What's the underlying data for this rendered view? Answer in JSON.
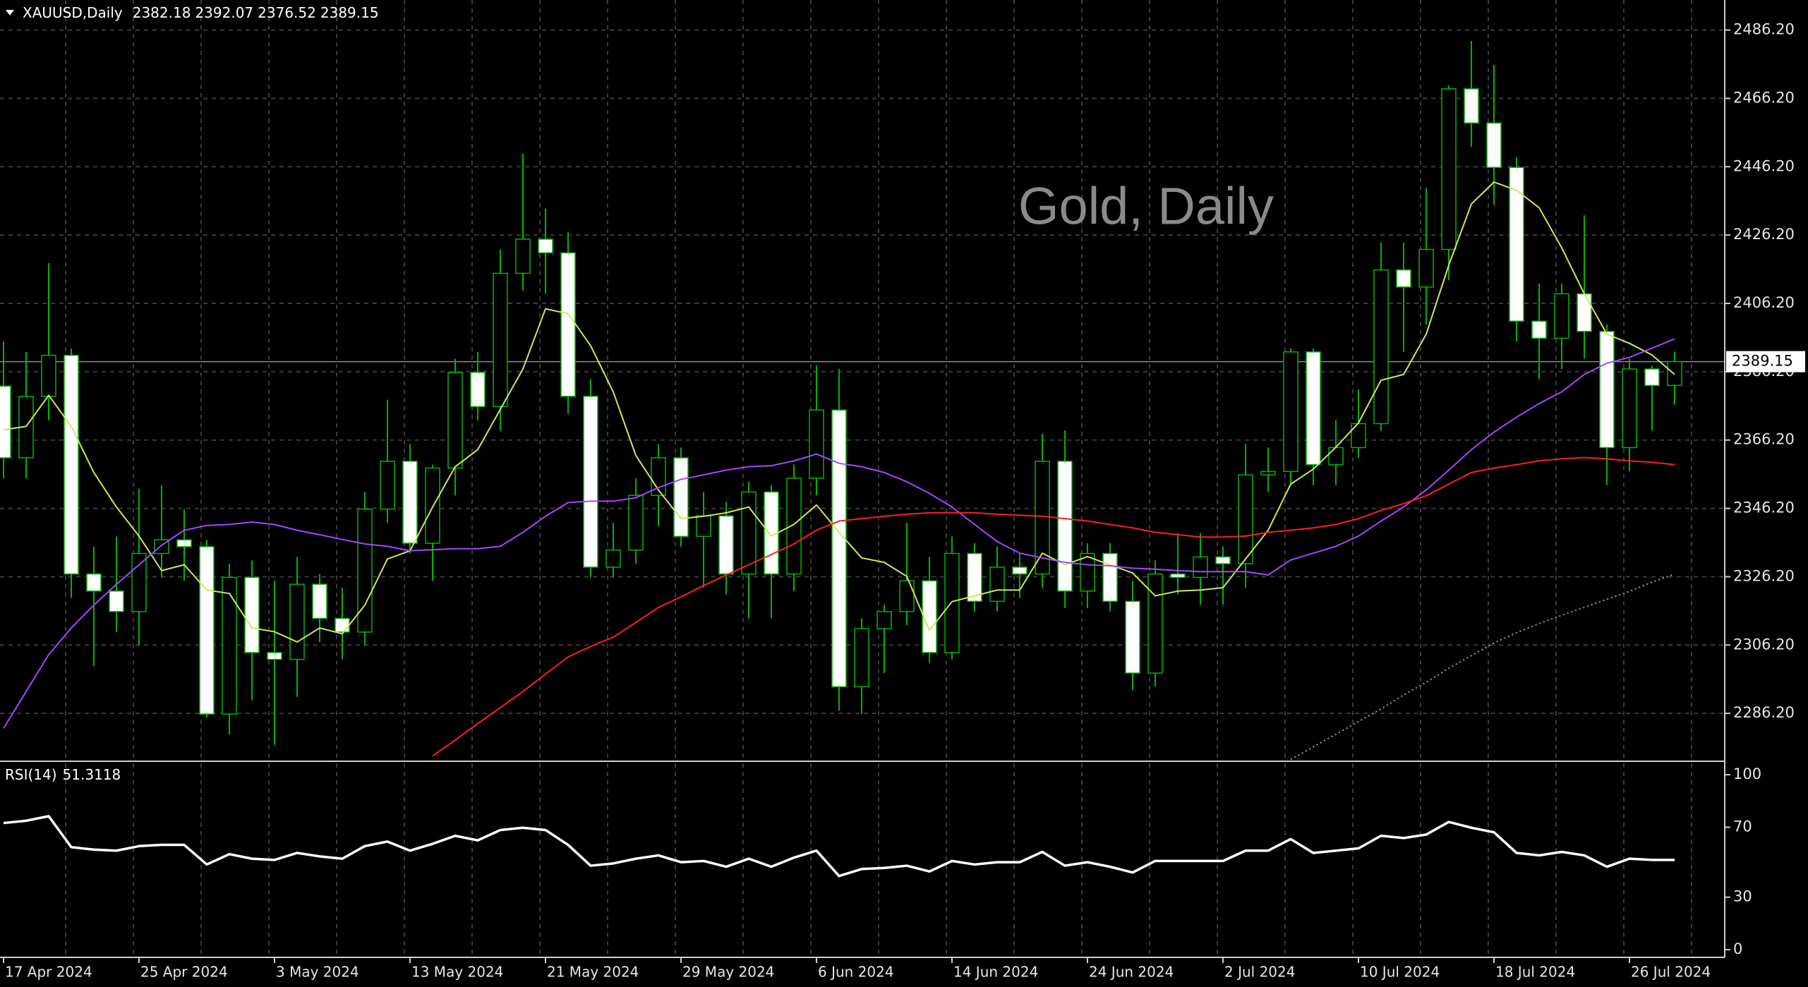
{
  "chart_data": [
    {
      "type": "candlestick",
      "title": "Gold, Daily",
      "symbol": "XAUUSD,Daily",
      "categories": [
        "17 Apr 2024",
        null,
        null,
        null,
        null,
        null,
        "25 Apr 2024",
        null,
        null,
        null,
        null,
        null,
        "3 May 2024",
        null,
        null,
        null,
        null,
        null,
        "13 May 2024",
        null,
        null,
        null,
        null,
        null,
        "21 May 2024",
        null,
        null,
        null,
        null,
        null,
        "29 May 2024",
        null,
        null,
        null,
        null,
        null,
        "6 Jun 2024",
        null,
        null,
        null,
        null,
        null,
        "14 Jun 2024",
        null,
        null,
        null,
        null,
        null,
        "24 Jun 2024",
        null,
        null,
        null,
        null,
        null,
        "2 Jul 2024",
        null,
        null,
        null,
        null,
        null,
        "10 Jul 2024",
        null,
        null,
        null,
        null,
        null,
        "18 Jul 2024",
        null,
        null,
        null,
        null,
        null,
        "26 Jul 2024",
        null,
        null
      ],
      "open": [
        2382,
        2361,
        2379,
        2391,
        2327,
        2322,
        2316,
        2333,
        2337,
        2335,
        2286,
        2326,
        2304,
        2302,
        2324,
        2314,
        2310,
        2346,
        2360,
        2336,
        2358,
        2386,
        2376,
        2415,
        2425,
        2421,
        2379,
        2329,
        2334,
        2350,
        2361,
        2338,
        2344,
        2327,
        2351,
        2327,
        2355,
        2375,
        2294,
        2311,
        2316,
        2325,
        2304,
        2333,
        2319,
        2329,
        2327,
        2360,
        2322,
        2333,
        2319,
        2298,
        2327,
        2326,
        2332,
        2330,
        2356,
        2357,
        2392,
        2359,
        2364,
        2371,
        2416,
        2411,
        2422,
        2469,
        2459,
        2446,
        2401,
        2396,
        2409,
        2398,
        2364,
        2387,
        2382.18
      ],
      "high": [
        2395,
        2392,
        2418,
        2393,
        2335,
        2338,
        2352,
        2353,
        2346,
        2337,
        2330,
        2331,
        2325,
        2332,
        2327,
        2323,
        2351,
        2378,
        2365,
        2359,
        2390,
        2392,
        2422,
        2450,
        2434,
        2427,
        2384,
        2342,
        2355,
        2365,
        2364,
        2351,
        2348,
        2354,
        2353,
        2359,
        2388,
        2387,
        2314,
        2318,
        2342,
        2332,
        2338,
        2336,
        2335,
        2333,
        2368,
        2369,
        2336,
        2336,
        2325,
        2331,
        2339,
        2339,
        2335,
        2365,
        2364,
        2393,
        2393,
        2372,
        2381,
        2424,
        2424,
        2440,
        2470,
        2483,
        2476,
        2449,
        2412,
        2412,
        2432,
        2400,
        2390,
        2388,
        2392.07
      ],
      "low": [
        2355,
        2355,
        2372,
        2320,
        2300,
        2310,
        2306,
        2326,
        2325,
        2285,
        2280,
        2290,
        2277,
        2291,
        2307,
        2302,
        2306,
        2342,
        2333,
        2325,
        2350,
        2372,
        2369,
        2410,
        2409,
        2374,
        2326,
        2326,
        2330,
        2341,
        2335,
        2323,
        2321,
        2314,
        2314,
        2322,
        2350,
        2287,
        2286,
        2298,
        2312,
        2301,
        2302,
        2316,
        2316,
        2320,
        2323,
        2317,
        2317,
        2316,
        2293,
        2294,
        2321,
        2318,
        2318,
        2323,
        2351,
        2353,
        2353,
        2353,
        2361,
        2369,
        2392,
        2400,
        2413,
        2452,
        2435,
        2395,
        2384,
        2387,
        2390,
        2353,
        2357,
        2369,
        2376.52
      ],
      "close": [
        2361,
        2379,
        2391,
        2327,
        2322,
        2316,
        2333,
        2337,
        2335,
        2286,
        2326,
        2304,
        2302,
        2324,
        2314,
        2310,
        2346,
        2360,
        2336,
        2358,
        2386,
        2376,
        2415,
        2425,
        2421,
        2379,
        2329,
        2334,
        2350,
        2361,
        2338,
        2344,
        2327,
        2351,
        2327,
        2355,
        2375,
        2294,
        2311,
        2316,
        2325,
        2304,
        2333,
        2319,
        2329,
        2327,
        2360,
        2322,
        2333,
        2319,
        2298,
        2327,
        2326,
        2332,
        2330,
        2356,
        2357,
        2392,
        2359,
        2364,
        2371,
        2416,
        2411,
        2422,
        2469,
        2459,
        2446,
        2401,
        2396,
        2409,
        2398,
        2364,
        2387,
        2382.18,
        2389.15
      ],
      "up_color": "#000000",
      "down_color": "#ffffff",
      "outline_color": "#00b400",
      "series": [
        {
          "color": "#cfe85a",
          "values": [
            2369.2,
            2370.2,
            2379.3,
            2370.2,
            2356.7,
            2346.6,
            2338.1,
            2328.0,
            2329.7,
            2322.3,
            2321.3,
            2311.2,
            2310.1,
            2307.1,
            2311.2,
            2309.5,
            2317.9,
            2331.4,
            2333.8,
            2346.6,
            2358.4,
            2363.4,
            2375.2,
            2387.0,
            2404.6,
            2403.2,
            2393.8,
            2380.3,
            2361.7,
            2351.6,
            2343.2,
            2343.9,
            2344.9,
            2346.6,
            2338.1,
            2341.5,
            2347.2,
            2339.2,
            2331.7,
            2330.4,
            2326.3,
            2310.5,
            2318.9,
            2320.6,
            2322.3,
            2322.3,
            2333.1,
            2329.7,
            2332.1,
            2329.7,
            2327.3,
            2320.6,
            2322.0,
            2322.3,
            2323.0,
            2331.4,
            2339.8,
            2353.3,
            2357.7,
            2364.1,
            2371.2,
            2383.7,
            2385.4,
            2397.2,
            2417.4,
            2435.3,
            2441.7,
            2439.3,
            2434.2,
            2422.5,
            2409.0,
            2397.2,
            2394.5,
            2391.1,
            2385.4
          ]
        },
        {
          "color": "#a546ff",
          "values": [
            2281.8,
            2292.6,
            2303.4,
            2311.2,
            2317.9,
            2324.0,
            2329.7,
            2335.4,
            2339.8,
            2341.2,
            2341.5,
            2342.2,
            2341.5,
            2339.8,
            2338.5,
            2337.1,
            2335.8,
            2335.1,
            2333.8,
            2334.1,
            2334.4,
            2334.4,
            2335.1,
            2339.2,
            2343.9,
            2347.9,
            2348.3,
            2348.3,
            2349.3,
            2352.3,
            2354.7,
            2356.0,
            2357.4,
            2358.4,
            2358.7,
            2360.1,
            2362.1,
            2359.4,
            2358.4,
            2356.7,
            2354.0,
            2350.6,
            2346.6,
            2341.5,
            2336.5,
            2333.1,
            2331.7,
            2330.4,
            2329.7,
            2329.4,
            2328.7,
            2328.4,
            2328.0,
            2327.7,
            2327.7,
            2327.7,
            2326.7,
            2331.1,
            2333.1,
            2335.1,
            2338.1,
            2342.5,
            2346.6,
            2351.6,
            2357.4,
            2363.4,
            2368.5,
            2372.9,
            2376.9,
            2380.3,
            2385.4,
            2388.7,
            2390.4,
            2393.1,
            2395.8
          ]
        },
        {
          "color": "#ff1e1e",
          "values": [
            null,
            null,
            null,
            null,
            null,
            null,
            null,
            null,
            null,
            null,
            null,
            null,
            null,
            null,
            null,
            null,
            null,
            null,
            null,
            2273.7,
            2278.4,
            2283.2,
            2287.9,
            2292.6,
            2297.7,
            2302.7,
            2305.8,
            2308.5,
            2312.8,
            2317.2,
            2320.3,
            2323.6,
            2326.7,
            2329.7,
            2332.7,
            2335.8,
            2339.8,
            2342.5,
            2343.2,
            2343.9,
            2344.5,
            2344.9,
            2344.9,
            2344.9,
            2344.5,
            2344.2,
            2343.9,
            2343.2,
            2342.5,
            2341.5,
            2340.5,
            2339.2,
            2338.5,
            2337.8,
            2337.8,
            2338.1,
            2339.2,
            2339.8,
            2340.5,
            2341.5,
            2343.2,
            2345.6,
            2347.6,
            2349.9,
            2353.3,
            2356.7,
            2358.0,
            2359.0,
            2360.1,
            2360.7,
            2361.1,
            2360.7,
            2360.1,
            2359.7,
            2359.0
          ]
        },
        {
          "color": "#a0a0a0",
          "style": "dotted",
          "values": [
            null,
            null,
            null,
            null,
            null,
            null,
            null,
            null,
            null,
            null,
            null,
            null,
            null,
            null,
            null,
            null,
            null,
            null,
            null,
            null,
            null,
            null,
            null,
            null,
            null,
            null,
            null,
            null,
            null,
            null,
            null,
            null,
            null,
            null,
            null,
            null,
            null,
            null,
            null,
            null,
            null,
            null,
            null,
            null,
            null,
            null,
            null,
            null,
            null,
            null,
            null,
            null,
            null,
            null,
            null,
            null,
            null,
            2272.7,
            2276.4,
            2280.1,
            2283.8,
            2287.5,
            2291.6,
            2295.3,
            2299.4,
            2303.1,
            2306.8,
            2309.8,
            2312.5,
            2314.9,
            2317.2,
            2319.6,
            2321.9,
            2324.6,
            2327.0
          ]
        }
      ],
      "ylim": [
        2272.4,
        2495.0
      ],
      "yticks": [
        {
          "value": 2286.2,
          "label": "2286.20"
        },
        {
          "value": 2306.2,
          "label": "2306.20"
        },
        {
          "value": 2326.2,
          "label": "2326.20"
        },
        {
          "value": 2346.2,
          "label": "2346.20"
        },
        {
          "value": 2366.2,
          "label": "2366.20"
        },
        {
          "value": 2386.2,
          "label": "2386.20"
        },
        {
          "value": 2406.2,
          "label": "2406.20"
        },
        {
          "value": 2426.2,
          "label": "2426.20"
        },
        {
          "value": 2446.2,
          "label": "2446.20"
        },
        {
          "value": 2466.2,
          "label": "2466.20"
        },
        {
          "value": 2486.2,
          "label": "2486.20"
        }
      ],
      "grid": true
    },
    {
      "type": "line",
      "title": "RSI(14)",
      "series": [
        {
          "color": "#ffffff",
          "values": [
            72.4,
            73.7,
            76.3,
            58.6,
            57.2,
            56.6,
            59.2,
            59.9,
            59.9,
            48.7,
            54.6,
            52.0,
            51.3,
            55.3,
            53.3,
            52.0,
            59.2,
            61.8,
            56.6,
            60.5,
            65.1,
            62.5,
            68.4,
            69.7,
            68.4,
            59.9,
            48.0,
            49.3,
            52.0,
            53.9,
            50.0,
            50.7,
            47.4,
            52.0,
            47.4,
            52.6,
            56.6,
            42.1,
            46.1,
            46.7,
            48.0,
            44.7,
            50.7,
            48.7,
            50.0,
            50.0,
            55.9,
            48.0,
            50.0,
            47.4,
            44.1,
            50.7,
            50.7,
            50.7,
            50.7,
            56.6,
            56.6,
            63.2,
            55.3,
            56.6,
            57.9,
            65.1,
            63.8,
            65.8,
            73.0,
            69.7,
            67.1,
            55.3,
            53.9,
            55.9,
            53.9,
            47.4,
            52.0,
            51.3,
            51.3118
          ]
        }
      ],
      "ylim": [
        -4.0,
        106.5
      ],
      "yticks": [
        0,
        30,
        70,
        100
      ],
      "grid": false
    }
  ]
}
